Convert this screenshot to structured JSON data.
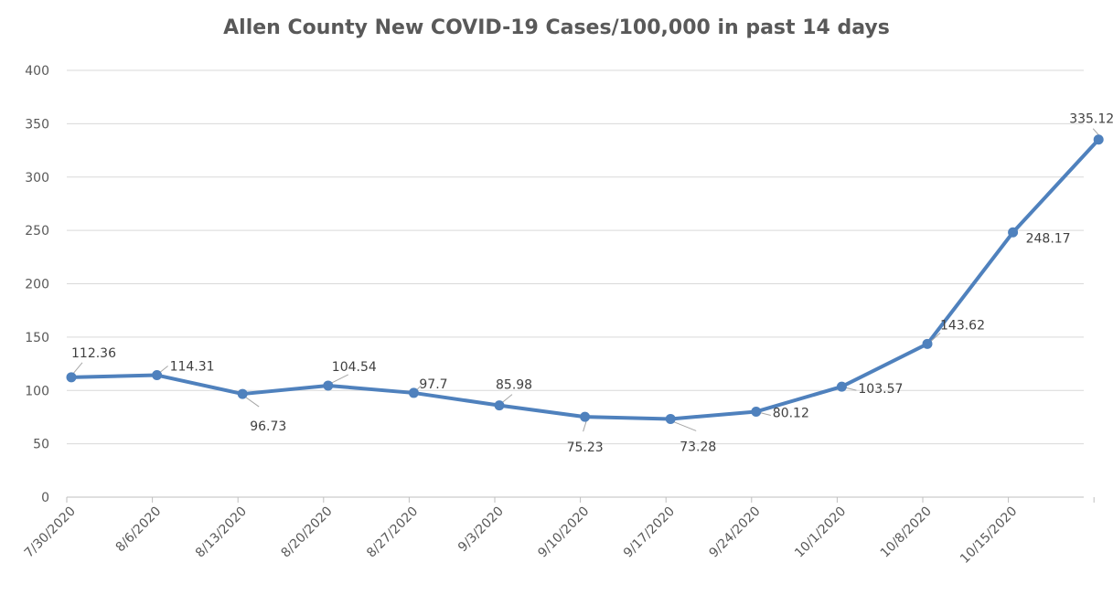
{
  "chart_data": {
    "type": "line",
    "title": "Allen County New COVID-19 Cases/100,000 in past 14 days",
    "xlabel": "",
    "ylabel": "",
    "categories": [
      "7/30/2020",
      "8/6/2020",
      "8/13/2020",
      "8/20/2020",
      "8/27/2020",
      "9/3/2020",
      "9/10/2020",
      "9/17/2020",
      "9/24/2020",
      "10/1/2020",
      "10/8/2020",
      "10/15/2020",
      ""
    ],
    "series": [
      {
        "values": [
          112.36,
          114.31,
          96.73,
          104.54,
          97.7,
          85.98,
          75.23,
          73.28,
          80.12,
          103.57,
          143.62,
          248.17,
          335.12
        ],
        "labels": [
          "112.36",
          "114.31",
          "96.73",
          "104.54",
          "97.7",
          "85.98",
          "75.23",
          "73.28",
          "80.12",
          "103.57",
          "143.62",
          "248.17",
          "335.12"
        ],
        "color": "#4f81bd"
      }
    ],
    "ylim": [
      0,
      400
    ],
    "yticks": [
      0,
      50,
      100,
      150,
      200,
      250,
      300,
      350,
      400
    ],
    "grid": true,
    "legend": "none"
  }
}
